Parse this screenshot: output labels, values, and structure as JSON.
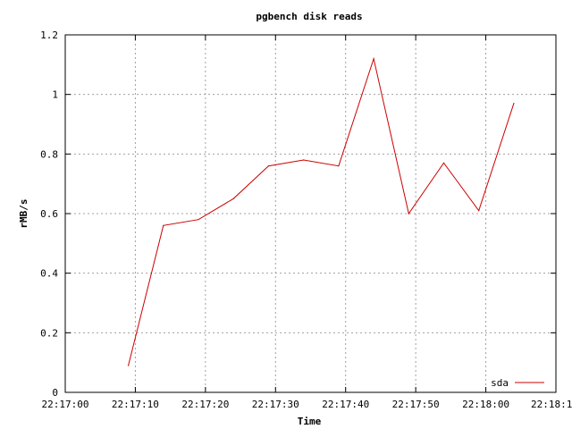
{
  "chart_data": {
    "type": "line",
    "title": "pgbench disk reads",
    "xlabel": "Time",
    "ylabel": "rMB/s",
    "xlim": [
      "22:17:00",
      "22:18:10"
    ],
    "ylim": [
      0,
      1.2
    ],
    "x_tick_labels": [
      "22:17:00",
      "22:17:10",
      "22:17:20",
      "22:17:30",
      "22:17:40",
      "22:17:50",
      "22:18:00",
      "22:18:1"
    ],
    "y_tick_labels": [
      "0",
      "0.2",
      "0.4",
      "0.6",
      "0.8",
      "1",
      "1.2"
    ],
    "grid": true,
    "legend_position": "bottom-right",
    "series": [
      {
        "name": "sda",
        "color": "#cc0000",
        "x": [
          "22:17:09",
          "22:17:14",
          "22:17:19",
          "22:17:24",
          "22:17:29",
          "22:17:34",
          "22:17:39",
          "22:17:44",
          "22:17:49",
          "22:17:54",
          "22:17:59",
          "22:18:04"
        ],
        "values": [
          0.09,
          0.56,
          0.58,
          0.65,
          0.76,
          0.78,
          0.76,
          1.12,
          0.6,
          0.77,
          0.61,
          0.97
        ]
      }
    ]
  }
}
